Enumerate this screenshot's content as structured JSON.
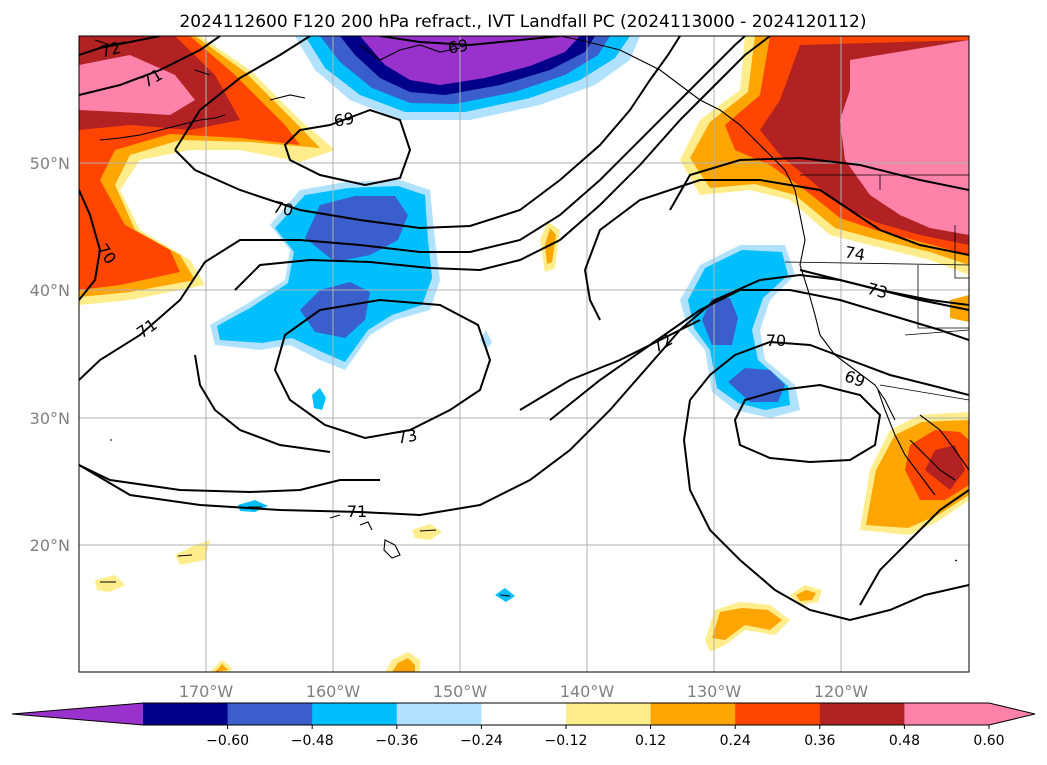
{
  "title": "2024112600 F120 200 hPa refract., IVT Landfall PC (2024113000 - 2024120112)",
  "lat_labels": [
    "50°N",
    "40°N",
    "30°N",
    "20°N"
  ],
  "lon_labels": [
    "170°W",
    "160°W",
    "150°W",
    "140°W",
    "130°W",
    "120°W"
  ],
  "contour_labels": [
    "72",
    "71",
    "69",
    "69",
    "70",
    "70",
    "71",
    "73",
    "71",
    "72",
    "70",
    "69",
    "74",
    "73"
  ],
  "colorbar": {
    "ticks": [
      "−0.60",
      "−0.48",
      "−0.36",
      "−0.24",
      "−0.12",
      "0.12",
      "0.24",
      "0.36",
      "0.48",
      "0.60"
    ],
    "colors": [
      "#9932cc",
      "#00008b",
      "#3a5fcd",
      "#00bfff",
      "#b0e2ff",
      "#ffffff",
      "#ffec8b",
      "#ffa500",
      "#ff4500",
      "#b22222",
      "#ff82ab",
      "#ff82ab"
    ]
  }
}
